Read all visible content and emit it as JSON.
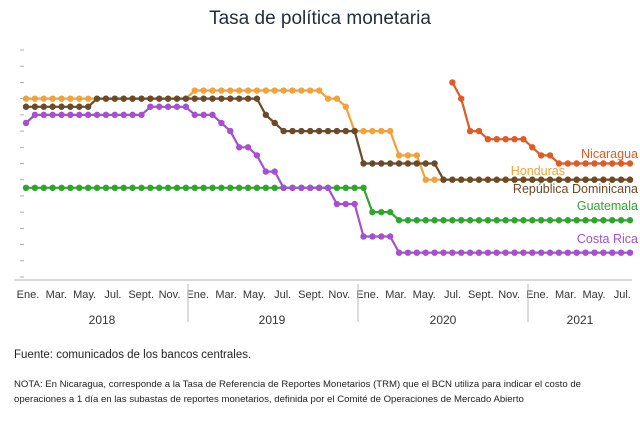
{
  "title": "Tasa de política monetaria",
  "source": "Fuente: comunicados de los bancos centrales.",
  "note": "NOTA: En Nicaragua, corresponde a la Tasa de Referencia de Reportes Monetarios (TRM) que el BCN utiliza para indicar el costo de operaciones a 1 día en las subastas de reportes monetarios, definida por el Comité de Operaciones de Mercado Abierto",
  "chart_data": {
    "type": "line",
    "title": "Tasa de política monetaria",
    "xlabel": "",
    "ylabel": "",
    "ylim": [
      0,
      14
    ],
    "grid": false,
    "legend": "inline labels at right end of each series",
    "x_tick_labels": [
      "Ene.",
      "Mar.",
      "May.",
      "Jul.",
      "Sept.",
      "Nov.",
      "Ene.",
      "Mar.",
      "May.",
      "Jul.",
      "Sept.",
      "Nov.",
      "Ene.",
      "Mar.",
      "May.",
      "Jul.",
      "Sept.",
      "Nov.",
      "Ene.",
      "Mar.",
      "May.",
      "Jul."
    ],
    "years": [
      "2018",
      "2019",
      "2020",
      "2021"
    ],
    "series": [
      {
        "name": "Nicaragua",
        "color": "#e05a24",
        "values": [
          null,
          null,
          null,
          null,
          null,
          null,
          null,
          null,
          null,
          null,
          null,
          null,
          null,
          null,
          null,
          null,
          null,
          null,
          null,
          null,
          null,
          null,
          null,
          null,
          null,
          null,
          null,
          null,
          null,
          null,
          null,
          null,
          null,
          null,
          null,
          null,
          null,
          null,
          null,
          null,
          null,
          null,
          null,
          null,
          null,
          null,
          null,
          null,
          12,
          11,
          9,
          9,
          8.5,
          8.5,
          8.5,
          8.5,
          8.5,
          8,
          7.5,
          7.5,
          7,
          7,
          7,
          7,
          7,
          7,
          7,
          7,
          7
        ]
      },
      {
        "name": "Honduras",
        "color": "#f2a23a",
        "values": [
          11,
          11,
          11,
          11,
          11,
          11,
          11,
          11,
          11,
          11,
          11,
          11,
          11,
          11,
          11,
          11,
          11,
          11,
          11,
          11.5,
          11.5,
          11.5,
          11.5,
          11.5,
          11.5,
          11.5,
          11.5,
          11.5,
          11.5,
          11.5,
          11.5,
          11.5,
          11.5,
          11.5,
          11,
          11,
          10.5,
          9,
          9,
          9,
          9,
          9,
          7.5,
          7.5,
          7.5,
          6,
          6,
          6,
          6,
          6,
          6,
          6,
          6,
          6,
          6,
          6,
          6,
          6,
          6,
          6,
          6,
          6,
          6,
          6,
          6,
          6,
          6,
          6,
          6
        ]
      },
      {
        "name": "República Dominicana",
        "color": "#6b4a28",
        "values": [
          10.5,
          10.5,
          10.5,
          10.5,
          10.5,
          10.5,
          10.5,
          10.5,
          11,
          11,
          11,
          11,
          11,
          11,
          11,
          11,
          11,
          11,
          11,
          11,
          11,
          11,
          11,
          11,
          11,
          11,
          11,
          10,
          9.5,
          9,
          9,
          9,
          9,
          9,
          9,
          9,
          9,
          9,
          7,
          7,
          7,
          7,
          7,
          7,
          7,
          7,
          7,
          6,
          6,
          6,
          6,
          6,
          6,
          6,
          6,
          6,
          6,
          6,
          6,
          6,
          6,
          6,
          6,
          6,
          6,
          6,
          6,
          6,
          6
        ]
      },
      {
        "name": "Guatemala",
        "color": "#2ea62e",
        "values": [
          5.5,
          5.5,
          5.5,
          5.5,
          5.5,
          5.5,
          5.5,
          5.5,
          5.5,
          5.5,
          5.5,
          5.5,
          5.5,
          5.5,
          5.5,
          5.5,
          5.5,
          5.5,
          5.5,
          5.5,
          5.5,
          5.5,
          5.5,
          5.5,
          5.5,
          5.5,
          5.5,
          5.5,
          5.5,
          5.5,
          5.5,
          5.5,
          5.5,
          5.5,
          5.5,
          5.5,
          5.5,
          5.5,
          5.5,
          4,
          4,
          4,
          3.5,
          3.5,
          3.5,
          3.5,
          3.5,
          3.5,
          3.5,
          3.5,
          3.5,
          3.5,
          3.5,
          3.5,
          3.5,
          3.5,
          3.5,
          3.5,
          3.5,
          3.5,
          3.5,
          3.5,
          3.5,
          3.5,
          3.5,
          3.5,
          3.5,
          3.5,
          3.5
        ]
      },
      {
        "name": "Costa Rica",
        "color": "#a64fd0",
        "values": [
          9.5,
          10,
          10,
          10,
          10,
          10,
          10,
          10,
          10,
          10,
          10,
          10,
          10,
          10,
          10.5,
          10.5,
          10.5,
          10.5,
          10.5,
          10,
          10,
          10,
          9.5,
          9,
          8,
          8,
          7.5,
          6.5,
          6.5,
          5.5,
          5.5,
          5.5,
          5.5,
          5.5,
          5.5,
          4.5,
          4.5,
          4.5,
          2.5,
          2.5,
          2.5,
          2.5,
          1.5,
          1.5,
          1.5,
          1.5,
          1.5,
          1.5,
          1.5,
          1.5,
          1.5,
          1.5,
          1.5,
          1.5,
          1.5,
          1.5,
          1.5,
          1.5,
          1.5,
          1.5,
          1.5,
          1.5,
          1.5,
          1.5,
          1.5,
          1.5,
          1.5,
          1.5,
          1.5
        ]
      }
    ]
  }
}
